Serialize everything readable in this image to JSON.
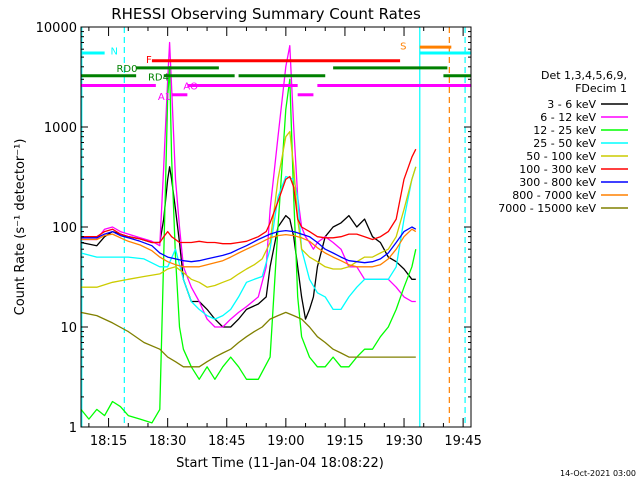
{
  "chart_data": {
    "type": "line",
    "title": "RHESSI Observing Summary Count Rates",
    "xlabel": "Start Time (11-Jan-04 18:08:22)",
    "ylabel": "Count Rate (s⁻¹ detector⁻¹)",
    "y_scale": "log",
    "ylim": [
      1,
      10000
    ],
    "xlim_minutes_after_1808": [
      0,
      99
    ],
    "x_ticks": [
      {
        "label": "18:15",
        "t": 7
      },
      {
        "label": "18:30",
        "t": 22
      },
      {
        "label": "18:45",
        "t": 37
      },
      {
        "label": "19:00",
        "t": 52
      },
      {
        "label": "19:15",
        "t": 67
      },
      {
        "label": "19:30",
        "t": 82
      },
      {
        "label": "19:45",
        "t": 97
      }
    ],
    "y_ticks": [
      {
        "label": "1",
        "v": 1
      },
      {
        "label": "10",
        "v": 10
      },
      {
        "label": "100",
        "v": 100
      },
      {
        "label": "1000",
        "v": 1000
      },
      {
        "label": "10000",
        "v": 10000
      }
    ],
    "legend_header": [
      "Det 1,3,4,5,6,9,",
      "FDecim 1"
    ],
    "legend_placement": "right",
    "footer_date": "14-Oct-2021 03:00",
    "series": [
      {
        "name": "3 - 6 keV",
        "color": "#000000",
        "x": [
          0,
          4,
          6,
          8,
          10,
          12,
          15,
          18,
          20,
          21,
          22,
          22.5,
          23,
          24,
          25,
          26,
          28,
          30,
          32,
          34,
          36,
          38,
          40,
          42,
          45,
          47,
          48,
          50,
          52,
          53,
          54,
          55,
          56,
          57,
          58,
          59,
          60,
          62,
          64,
          66,
          68,
          70,
          72,
          74,
          76,
          78,
          80,
          82,
          84,
          85,
          85.5
        ],
        "y": [
          70,
          65,
          80,
          90,
          85,
          80,
          76,
          70,
          70,
          120,
          300,
          400,
          300,
          150,
          70,
          30,
          18,
          18,
          15,
          12,
          10,
          10,
          12,
          15,
          17,
          20,
          40,
          100,
          130,
          120,
          80,
          40,
          20,
          12,
          15,
          20,
          40,
          80,
          100,
          110,
          130,
          100,
          120,
          80,
          70,
          50,
          45,
          38,
          30,
          30,
          null
        ]
      },
      {
        "name": "6 - 12 keV",
        "color": "#ff00ff",
        "x": [
          0,
          4,
          6,
          8,
          10,
          12,
          15,
          18,
          20,
          21,
          22,
          22.5,
          23,
          24,
          25,
          26,
          28,
          30,
          32,
          34,
          36,
          38,
          40,
          42,
          45,
          47,
          48,
          50,
          52,
          53,
          54,
          55,
          56,
          57,
          58,
          59,
          60,
          62,
          64,
          66,
          68,
          70,
          72,
          74,
          76,
          78,
          80,
          82,
          84,
          85,
          85.5
        ],
        "y": [
          75,
          75,
          95,
          100,
          90,
          85,
          78,
          72,
          65,
          400,
          3000,
          7000,
          2500,
          300,
          100,
          40,
          25,
          18,
          12,
          10,
          10,
          12,
          14,
          16,
          20,
          40,
          150,
          800,
          4000,
          6500,
          1000,
          200,
          100,
          80,
          70,
          60,
          70,
          80,
          70,
          60,
          40,
          40,
          30,
          30,
          30,
          30,
          25,
          20,
          18,
          18,
          null
        ]
      },
      {
        "name": "12 - 25 keV",
        "color": "#00ff00",
        "x": [
          0,
          2,
          4,
          6,
          8,
          10,
          12,
          15,
          18,
          20,
          21,
          22,
          22.5,
          23,
          24,
          25,
          26,
          28,
          30,
          32,
          34,
          36,
          38,
          40,
          42,
          45,
          48,
          50,
          52,
          53,
          54,
          55,
          56,
          58,
          60,
          62,
          64,
          66,
          68,
          70,
          72,
          74,
          76,
          78,
          80,
          82,
          84,
          85,
          85.5
        ],
        "y": [
          1.5,
          1.2,
          1.5,
          1.3,
          1.8,
          1.6,
          1.3,
          1.2,
          1.1,
          1.5,
          50,
          2000,
          4000,
          500,
          50,
          10,
          6,
          4,
          3,
          4,
          3,
          4,
          5,
          4,
          3,
          3,
          5,
          100,
          1500,
          3000,
          200,
          20,
          8,
          5,
          4,
          4,
          5,
          4,
          4,
          5,
          6,
          6,
          8,
          10,
          15,
          25,
          40,
          60,
          null
        ]
      },
      {
        "name": "25 - 50 keV",
        "color": "#00ffff",
        "x": [
          0,
          4,
          8,
          12,
          16,
          20,
          22,
          24,
          26,
          28,
          30,
          32,
          34,
          36,
          38,
          40,
          42,
          44,
          46,
          48,
          50,
          52,
          54,
          55,
          56,
          58,
          60,
          62,
          64,
          66,
          68,
          70,
          72,
          74,
          76,
          78,
          80,
          82,
          84,
          85,
          85.5
        ],
        "y": [
          55,
          50,
          50,
          50,
          48,
          40,
          40,
          60,
          30,
          18,
          15,
          13,
          12,
          13,
          15,
          20,
          28,
          30,
          32,
          60,
          200,
          320,
          300,
          200,
          60,
          30,
          22,
          20,
          15,
          15,
          20,
          25,
          30,
          30,
          30,
          30,
          40,
          120,
          300,
          400,
          null
        ]
      },
      {
        "name": "50 - 100 keV",
        "color": "#cccc00",
        "x": [
          0,
          4,
          8,
          12,
          16,
          20,
          22,
          24,
          26,
          28,
          30,
          32,
          34,
          36,
          38,
          40,
          42,
          44,
          46,
          48,
          50,
          52,
          53,
          54,
          55,
          56,
          58,
          60,
          62,
          64,
          66,
          68,
          70,
          72,
          74,
          76,
          78,
          80,
          82,
          84,
          85,
          85.5
        ],
        "y": [
          25,
          25,
          28,
          30,
          32,
          34,
          38,
          40,
          35,
          30,
          28,
          25,
          26,
          28,
          30,
          34,
          38,
          42,
          48,
          70,
          300,
          800,
          900,
          400,
          120,
          60,
          50,
          45,
          40,
          38,
          38,
          40,
          45,
          50,
          50,
          55,
          60,
          80,
          150,
          300,
          400,
          null
        ]
      },
      {
        "name": "100 - 300 keV",
        "color": "#ff0000",
        "x": [
          0,
          4,
          6,
          8,
          10,
          12,
          15,
          18,
          20,
          21,
          22,
          23,
          24,
          25,
          26,
          28,
          30,
          32,
          34,
          36,
          38,
          40,
          42,
          45,
          47,
          48,
          50,
          52,
          53,
          54,
          55,
          56,
          58,
          60,
          62,
          64,
          66,
          68,
          70,
          72,
          74,
          76,
          78,
          80,
          82,
          84,
          85,
          85.5
        ],
        "y": [
          80,
          80,
          90,
          95,
          85,
          80,
          76,
          70,
          70,
          80,
          90,
          80,
          75,
          70,
          70,
          70,
          72,
          70,
          70,
          68,
          68,
          70,
          72,
          80,
          90,
          110,
          180,
          300,
          320,
          250,
          120,
          100,
          90,
          80,
          78,
          78,
          80,
          85,
          85,
          80,
          75,
          80,
          90,
          120,
          300,
          500,
          600,
          null
        ]
      },
      {
        "name": "300 - 800 keV",
        "color": "#0000ff",
        "x": [
          0,
          4,
          6,
          8,
          10,
          12,
          15,
          18,
          20,
          22,
          24,
          26,
          28,
          30,
          32,
          34,
          36,
          38,
          40,
          42,
          45,
          48,
          50,
          52,
          54,
          56,
          58,
          60,
          62,
          64,
          66,
          68,
          70,
          72,
          74,
          76,
          78,
          80,
          82,
          84,
          85,
          85.5
        ],
        "y": [
          78,
          78,
          85,
          90,
          82,
          78,
          72,
          65,
          55,
          50,
          48,
          46,
          45,
          46,
          48,
          50,
          52,
          55,
          60,
          65,
          75,
          85,
          90,
          92,
          90,
          85,
          80,
          70,
          60,
          55,
          50,
          46,
          45,
          44,
          45,
          48,
          55,
          70,
          90,
          100,
          95,
          null
        ]
      },
      {
        "name": "800 - 7000 keV",
        "color": "#ff8000",
        "x": [
          0,
          4,
          6,
          8,
          10,
          12,
          15,
          18,
          20,
          22,
          24,
          26,
          28,
          30,
          32,
          34,
          36,
          38,
          40,
          42,
          45,
          48,
          50,
          52,
          54,
          56,
          58,
          60,
          62,
          64,
          66,
          68,
          70,
          72,
          74,
          76,
          78,
          80,
          82,
          84,
          85,
          85.5
        ],
        "y": [
          75,
          75,
          82,
          85,
          78,
          72,
          66,
          58,
          50,
          45,
          42,
          40,
          40,
          40,
          42,
          44,
          46,
          50,
          55,
          60,
          68,
          78,
          82,
          84,
          82,
          78,
          72,
          62,
          55,
          50,
          46,
          42,
          40,
          40,
          40,
          42,
          48,
          60,
          80,
          95,
          90,
          null
        ]
      },
      {
        "name": "7000 - 15000 keV",
        "color": "#808000",
        "x": [
          0,
          4,
          8,
          12,
          16,
          20,
          22,
          24,
          26,
          28,
          30,
          32,
          34,
          36,
          38,
          40,
          42,
          44,
          46,
          48,
          50,
          52,
          54,
          56,
          58,
          60,
          62,
          64,
          66,
          68,
          70,
          72,
          74,
          76,
          78,
          80,
          82,
          84,
          85,
          85.5
        ],
        "y": [
          14,
          13,
          11,
          9,
          7,
          6,
          5,
          4.5,
          4,
          4,
          4,
          4.5,
          5,
          5.5,
          6,
          7,
          8,
          9,
          10,
          12,
          13,
          14,
          13,
          12,
          10,
          8,
          7,
          6,
          5.5,
          5,
          5,
          5,
          5,
          5,
          5,
          5,
          5,
          5,
          5,
          null
        ]
      }
    ],
    "annotations": [
      {
        "label": "N",
        "color": "#00ffff",
        "text_t": 7.5,
        "text_v": 5800,
        "bar_segments": [
          {
            "t1": 0,
            "t2": 6,
            "v": 5500
          },
          {
            "t1": 86,
            "t2": 99,
            "v": 5500
          }
        ]
      },
      {
        "label": "S",
        "color": "#ff8000",
        "text_t": 81,
        "text_v": 6500,
        "bar_segments": [
          {
            "t1": 86,
            "t2": 94,
            "v": 6300
          }
        ]
      },
      {
        "label": "F",
        "color": "#ff0000",
        "text_t": 16.5,
        "text_v": 4800,
        "bar_segments": [
          {
            "t1": 18,
            "t2": 81,
            "v": 4600
          }
        ]
      },
      {
        "label": "RD0",
        "color": "#008000",
        "text_t": 9,
        "text_v": 3900,
        "bar_segments": [
          {
            "t1": 14,
            "t2": 35,
            "v": 3900
          },
          {
            "t1": 64,
            "t2": 93,
            "v": 3900
          }
        ]
      },
      {
        "label": "RD4",
        "color": "#008000",
        "text_t": 17,
        "text_v": 3200,
        "bar_segments": [
          {
            "t1": 0,
            "t2": 14,
            "v": 3250
          },
          {
            "t1": 21,
            "t2": 39,
            "v": 3250
          },
          {
            "t1": 40,
            "t2": 62,
            "v": 3250
          },
          {
            "t1": 92,
            "t2": 99,
            "v": 3250
          }
        ]
      },
      {
        "label": "A1",
        "color": "#ff00ff",
        "text_t": 19.5,
        "text_v": 2050,
        "bar_segments": [
          {
            "t1": 0,
            "t2": 19,
            "v": 2600
          },
          {
            "t1": 23,
            "t2": 27,
            "v": 2100
          },
          {
            "t1": 27,
            "t2": 55,
            "v": 2600
          },
          {
            "t1": 55,
            "t2": 59,
            "v": 2100
          },
          {
            "t1": 60,
            "t2": 99,
            "v": 2600
          }
        ]
      },
      {
        "label": "AO",
        "color": "#ff00ff",
        "text_t": 26,
        "text_v": 2600,
        "bar_segments": []
      }
    ],
    "vertical_lines": [
      {
        "t": 0.2,
        "color": "#00ffff",
        "style": "solid"
      },
      {
        "t": 11,
        "color": "#00ffff",
        "style": "dashed"
      },
      {
        "t": 86,
        "color": "#00ffff",
        "style": "solid"
      },
      {
        "t": 93.5,
        "color": "#ff8000",
        "style": "dashed"
      },
      {
        "t": 97.5,
        "color": "#00ffff",
        "style": "dashed"
      }
    ]
  }
}
